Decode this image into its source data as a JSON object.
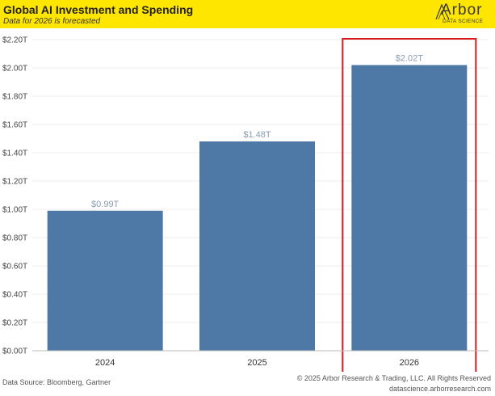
{
  "header": {
    "title": "Global AI Investment and Spending",
    "subtitle": "Data for 2026 is forecasted",
    "logo_name": "Arbor",
    "logo_sub": "DATA SCIENCE",
    "background": "#ffe600"
  },
  "chart_data": {
    "type": "bar",
    "title": "Global AI Investment and Spending",
    "subtitle": "Data for 2026 is forecasted",
    "categories": [
      "2024",
      "2025",
      "2026"
    ],
    "values": [
      0.99,
      1.48,
      2.02
    ],
    "data_labels": [
      "$0.99T",
      "$1.48T",
      "$2.02T"
    ],
    "xlabel": "",
    "ylabel": "",
    "ylim": [
      0,
      2.2
    ],
    "yticks": [
      0,
      0.2,
      0.4,
      0.6,
      0.8,
      1.0,
      1.2,
      1.4,
      1.6,
      1.8,
      2.0,
      2.2
    ],
    "ytick_labels": [
      "$0.00T",
      "$0.20T",
      "$0.40T",
      "$0.60T",
      "$0.80T",
      "$1.00T",
      "$1.20T",
      "$1.40T",
      "$1.60T",
      "$1.80T",
      "$2.00T",
      "$2.20T"
    ],
    "grid": true,
    "bar_color": "#4e79a7",
    "highlight": {
      "category": "2026",
      "color": "#d7191c"
    }
  },
  "footer": {
    "source": "Data Source: Bloomberg, Gartner",
    "copyright": "© 2025 Arbor Research & Trading, LLC. All Rights Reserved",
    "website": "datascience.arborresearch.com"
  }
}
